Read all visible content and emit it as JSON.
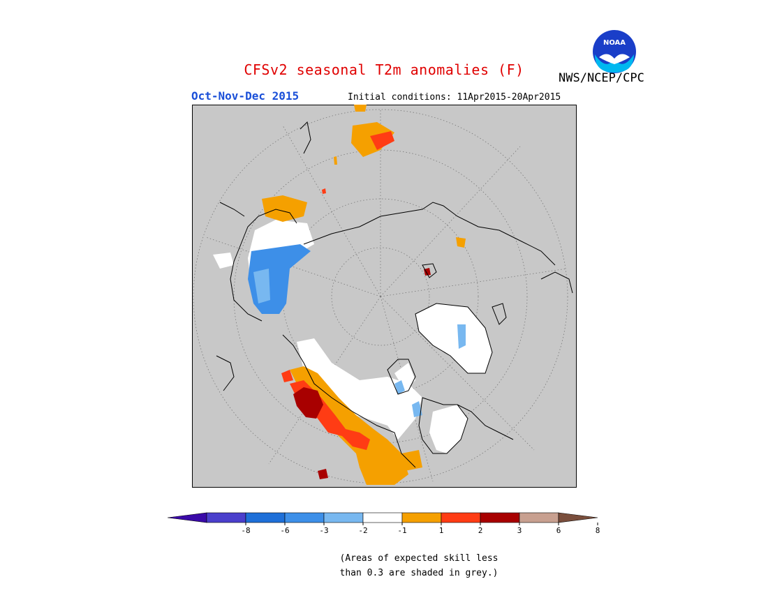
{
  "header": {
    "title": "CFSv2 seasonal T2m anomalies (F)",
    "agency": "NWS/NCEP/CPC",
    "season": "Oct-Nov-Dec 2015",
    "initial_conditions": "Initial conditions: 11Apr2015-20Apr2015",
    "logo_text": "NOAA"
  },
  "legend": {
    "tick_labels": [
      "-8",
      "-6",
      "-3",
      "-2",
      "-1",
      "1",
      "2",
      "3",
      "6",
      "8"
    ],
    "colors": [
      "#3a0aa8",
      "#4a3fcc",
      "#1e6fd8",
      "#3d8fe8",
      "#78b8f0",
      "#ffffff",
      "#f5a000",
      "#ff3c14",
      "#a80000",
      "#c8a090",
      "#7a4e3c"
    ]
  },
  "footnote": {
    "line1": "(Areas of expected skill less",
    "line2": "than 0.3 are shaded in grey.)"
  },
  "colors": {
    "background_grey": "#c8c8c8",
    "title_red": "#e00000",
    "season_blue": "#1a4fd8"
  }
}
